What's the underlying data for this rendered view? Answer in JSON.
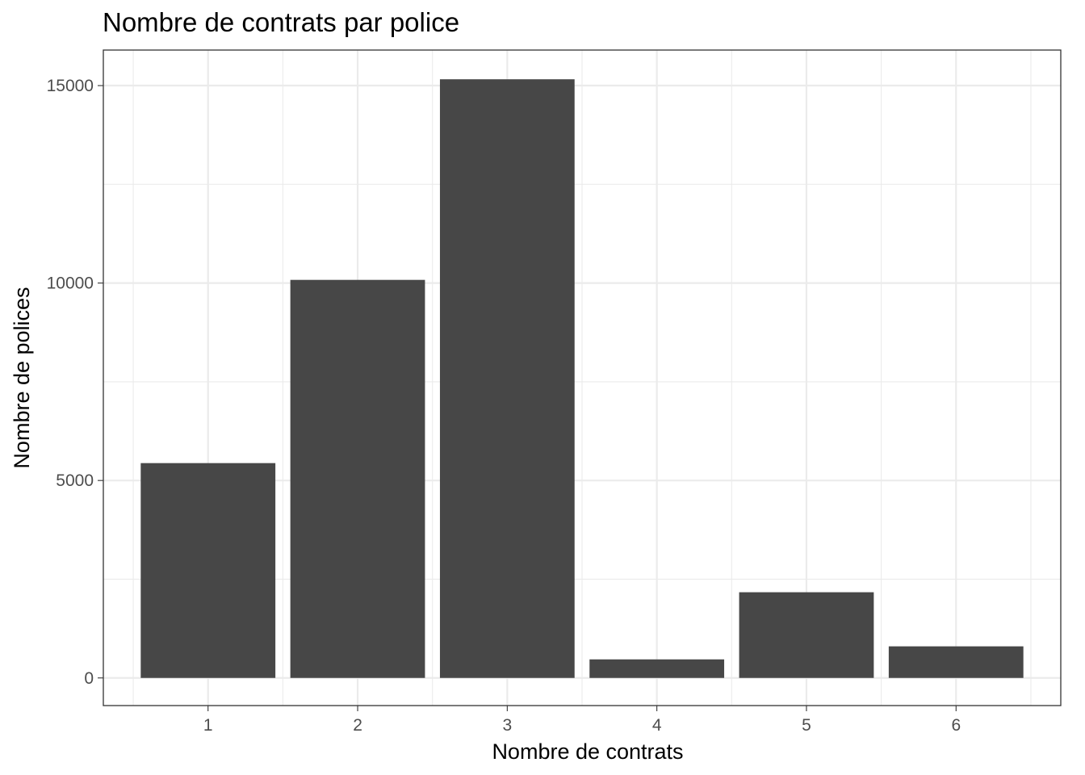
{
  "chart_data": {
    "type": "bar",
    "title": "Nombre de contrats par police",
    "xlabel": "Nombre de contrats",
    "ylabel": "Nombre de polices",
    "categories": [
      "1",
      "2",
      "3",
      "4",
      "5",
      "6"
    ],
    "values": [
      5440,
      10080,
      15160,
      470,
      2170,
      800
    ],
    "yticks": [
      0,
      5000,
      10000,
      15000
    ],
    "yticklabels": [
      "0",
      "5000",
      "10000",
      "15000"
    ],
    "ylim": [
      -700,
      15900
    ],
    "grid": true,
    "legend": "none",
    "colors": {
      "bar": "#474747",
      "grid": "#ebebeb",
      "background": "#ffffff",
      "border": "#333333"
    }
  }
}
